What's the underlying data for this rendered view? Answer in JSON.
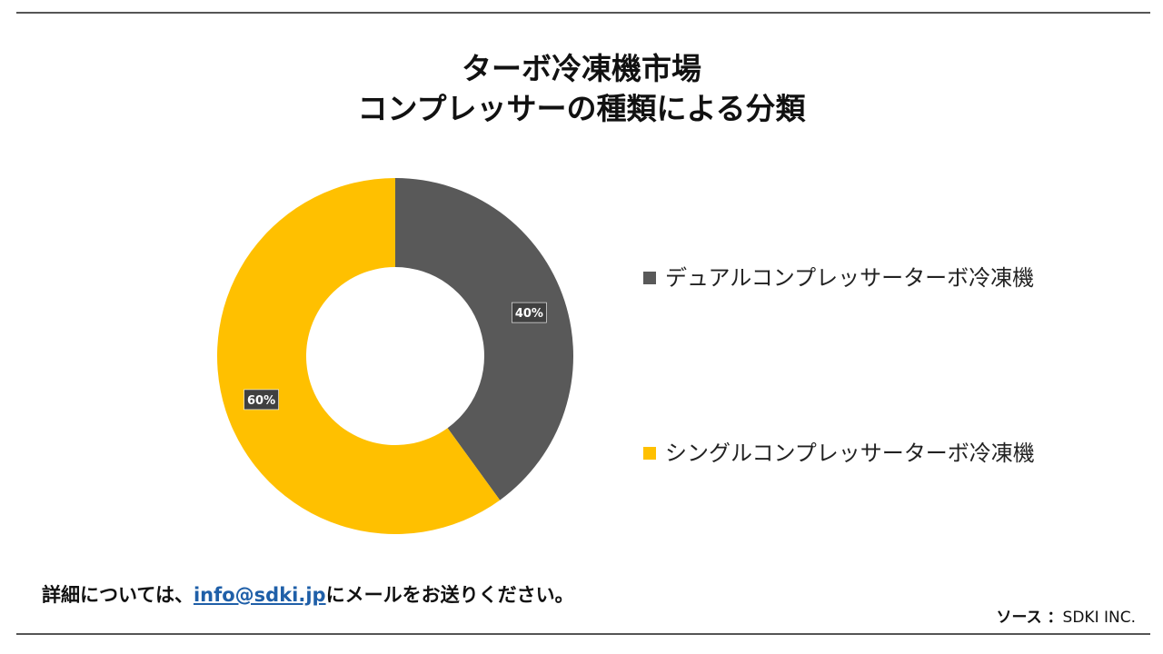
{
  "title": {
    "line1": "ターボ冷凍機市場",
    "line2": "コンプレッサーの種類による分類"
  },
  "chart_data": {
    "type": "pie",
    "subtype": "donut",
    "title": "ターボ冷凍機市場 コンプレッサーの種類による分類",
    "categories": [
      "デュアルコンプレッサーターボ冷凍機",
      "シングルコンプレッサーターボ冷凍機"
    ],
    "values": [
      40,
      60
    ],
    "labels": [
      "40%",
      "60%"
    ],
    "colors": [
      "#595959",
      "#FFC000"
    ],
    "legend_position": "right"
  },
  "legend": {
    "items": [
      {
        "label": "デュアルコンプレッサーターボ冷凍機",
        "color": "#595959"
      },
      {
        "label": "シングルコンプレッサーターボ冷凍機",
        "color": "#FFC000"
      }
    ]
  },
  "footer": {
    "prefix": "詳細については、",
    "email": "info@sdki.jp",
    "suffix": "にメールをお送りください。"
  },
  "source": {
    "key": "ソース ：",
    "value": "SDKI INC."
  }
}
